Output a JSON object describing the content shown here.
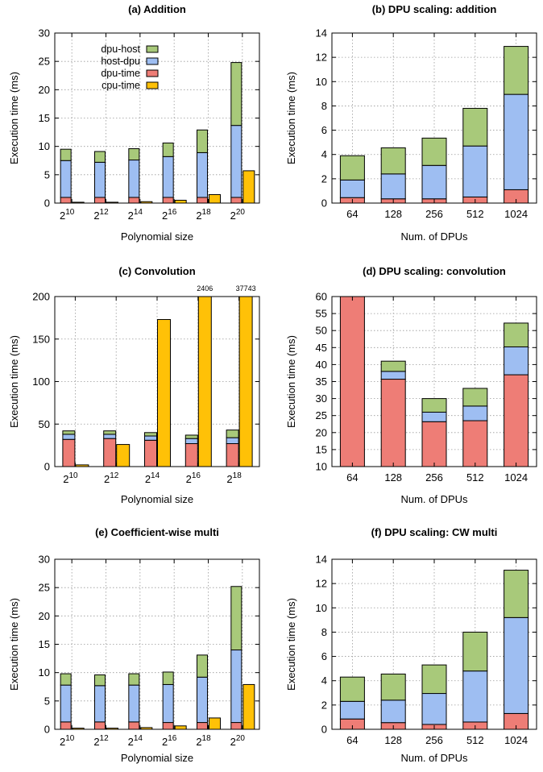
{
  "colors": {
    "dpu-host": "#a8c97a",
    "host-dpu": "#9ebef2",
    "dpu-time": "#ee7d76",
    "cpu-time": "#ffc107"
  },
  "chart_data": [
    {
      "id": "a",
      "type": "bar",
      "title": "(a) Addition",
      "xlabel": "Polynomial size",
      "ylabel": "Execution time (ms)",
      "ylim": [
        0,
        30
      ],
      "yticks": [
        0,
        5,
        10,
        15,
        20,
        25,
        30
      ],
      "categories": [
        "2^10",
        "2^12",
        "2^14",
        "2^16",
        "2^18",
        "2^20"
      ],
      "category_exponents": [
        "10",
        "12",
        "14",
        "16",
        "18",
        "20"
      ],
      "grid": true,
      "legend": {
        "position": "top-left",
        "entries": [
          "dpu-host",
          "host-dpu",
          "dpu-time",
          "cpu-time"
        ]
      },
      "stacked_series": [
        {
          "name": "dpu-time",
          "values": [
            1.0,
            1.0,
            1.0,
            1.0,
            1.0,
            1.0
          ]
        },
        {
          "name": "host-dpu",
          "values": [
            6.5,
            6.2,
            6.6,
            7.2,
            7.9,
            12.7
          ]
        },
        {
          "name": "dpu-host",
          "values": [
            2.0,
            1.9,
            2.0,
            2.4,
            4.0,
            11.1
          ]
        }
      ],
      "side_series": {
        "name": "cpu-time",
        "values": [
          0.15,
          0.15,
          0.25,
          0.5,
          1.5,
          5.7
        ]
      },
      "annotations": []
    },
    {
      "id": "b",
      "type": "bar",
      "title": "(b) DPU scaling: addition",
      "xlabel": "Num. of DPUs",
      "ylabel": "Execution time (ms)",
      "ylim": [
        0,
        14
      ],
      "yticks": [
        0,
        2,
        4,
        6,
        8,
        10,
        12,
        14
      ],
      "categories": [
        "64",
        "128",
        "256",
        "512",
        "1024"
      ],
      "grid": true,
      "stacked_series": [
        {
          "name": "dpu-time",
          "values": [
            0.45,
            0.35,
            0.35,
            0.5,
            1.1
          ]
        },
        {
          "name": "host-dpu",
          "values": [
            1.45,
            2.05,
            2.75,
            4.2,
            7.85
          ]
        },
        {
          "name": "dpu-host",
          "values": [
            2.0,
            2.15,
            2.25,
            3.1,
            3.95
          ]
        }
      ],
      "annotations": []
    },
    {
      "id": "c",
      "type": "bar",
      "title": "(c) Convolution",
      "xlabel": "Polynomial size",
      "ylabel": "Execution time (ms)",
      "ylim": [
        0,
        200
      ],
      "yticks": [
        0,
        50,
        100,
        150,
        200
      ],
      "categories": [
        "2^10",
        "2^12",
        "2^14",
        "2^16",
        "2^18"
      ],
      "category_exponents": [
        "10",
        "12",
        "14",
        "16",
        "18"
      ],
      "grid": true,
      "stacked_series": [
        {
          "name": "dpu-time",
          "values": [
            32,
            33,
            31,
            27,
            27
          ]
        },
        {
          "name": "host-dpu",
          "values": [
            6,
            5,
            5,
            6,
            7
          ]
        },
        {
          "name": "dpu-host",
          "values": [
            4,
            4,
            4,
            4,
            9
          ]
        }
      ],
      "side_series": {
        "name": "cpu-time",
        "values": [
          2,
          26,
          173,
          2406,
          37743
        ]
      },
      "annotations": [
        {
          "category": "2^16",
          "text": "2406"
        },
        {
          "category": "2^18",
          "text": "37743"
        }
      ]
    },
    {
      "id": "d",
      "type": "bar",
      "title": "(d) DPU scaling: convolution",
      "xlabel": "Num. of DPUs",
      "ylabel": "Execution time (ms)",
      "ylim": [
        10,
        60
      ],
      "yticks": [
        10,
        15,
        20,
        25,
        30,
        35,
        40,
        45,
        50,
        55,
        60
      ],
      "categories": [
        "64",
        "128",
        "256",
        "512",
        "1024"
      ],
      "grid": true,
      "stacked_series": [
        {
          "name": "dpu-time",
          "values": [
            51,
            25.7,
            13.2,
            13.5,
            27
          ]
        },
        {
          "name": "host-dpu",
          "values": [
            1.5,
            2.3,
            2.8,
            4.3,
            8.2
          ]
        },
        {
          "name": "dpu-host",
          "values": [
            3.2,
            3.0,
            4.0,
            5.2,
            7.0
          ]
        }
      ],
      "annotations": []
    },
    {
      "id": "e",
      "type": "bar",
      "title": "(e) Coefficient-wise multi",
      "xlabel": "Polynomial size",
      "ylabel": "Execution time (ms)",
      "ylim": [
        0,
        30
      ],
      "yticks": [
        0,
        5,
        10,
        15,
        20,
        25,
        30
      ],
      "categories": [
        "2^10",
        "2^12",
        "2^14",
        "2^16",
        "2^18",
        "2^20"
      ],
      "category_exponents": [
        "10",
        "12",
        "14",
        "16",
        "18",
        "20"
      ],
      "grid": true,
      "stacked_series": [
        {
          "name": "dpu-time",
          "values": [
            1.3,
            1.3,
            1.3,
            1.2,
            1.2,
            1.2
          ]
        },
        {
          "name": "host-dpu",
          "values": [
            6.5,
            6.4,
            6.5,
            6.7,
            8.0,
            12.8
          ]
        },
        {
          "name": "dpu-host",
          "values": [
            2.0,
            1.9,
            2.0,
            2.2,
            3.9,
            11.2
          ]
        }
      ],
      "side_series": {
        "name": "cpu-time",
        "values": [
          0.2,
          0.2,
          0.3,
          0.6,
          2.0,
          7.9
        ]
      },
      "annotations": []
    },
    {
      "id": "f",
      "type": "bar",
      "title": "(f) DPU scaling: CW multi",
      "xlabel": "Num. of DPUs",
      "ylabel": "Execution time (ms)",
      "ylim": [
        0,
        14
      ],
      "yticks": [
        0,
        2,
        4,
        6,
        8,
        10,
        12,
        14
      ],
      "categories": [
        "64",
        "128",
        "256",
        "512",
        "1024"
      ],
      "grid": true,
      "stacked_series": [
        {
          "name": "dpu-time",
          "values": [
            0.85,
            0.55,
            0.4,
            0.6,
            1.3
          ]
        },
        {
          "name": "host-dpu",
          "values": [
            1.45,
            1.85,
            2.55,
            4.2,
            7.9
          ]
        },
        {
          "name": "dpu-host",
          "values": [
            2.0,
            2.15,
            2.35,
            3.2,
            3.9
          ]
        }
      ],
      "annotations": []
    }
  ]
}
